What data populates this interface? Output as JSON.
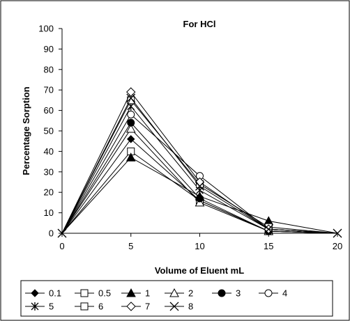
{
  "chart_data": {
    "type": "line",
    "title": "For HCl",
    "xlabel": "Volume of Eluent mL",
    "ylabel": "Percentage Sorption",
    "x": [
      0,
      5,
      10,
      15,
      20
    ],
    "xlim": [
      0,
      20
    ],
    "ylim": [
      0,
      100
    ],
    "xticks": [
      "0",
      "5",
      "10",
      "15",
      "20"
    ],
    "yticks": [
      "0",
      "10",
      "20",
      "30",
      "40",
      "50",
      "60",
      "70",
      "80",
      "90",
      "100"
    ],
    "grid": false,
    "legend_position": "bottom",
    "series": [
      {
        "name": "0.1",
        "marker": "filled-diamond",
        "values": [
          0,
          46,
          16,
          1,
          0
        ]
      },
      {
        "name": "0.5",
        "marker": "open-square",
        "values": [
          0,
          40,
          16,
          1,
          0
        ]
      },
      {
        "name": "1",
        "marker": "filled-triangle",
        "values": [
          0,
          37,
          18,
          6,
          0
        ]
      },
      {
        "name": "2",
        "marker": "open-triangle",
        "values": [
          0,
          51,
          15,
          1,
          0
        ]
      },
      {
        "name": "3",
        "marker": "filled-circle",
        "values": [
          0,
          54,
          17,
          1,
          0
        ]
      },
      {
        "name": "4",
        "marker": "open-circle",
        "values": [
          0,
          58,
          28,
          2,
          0
        ]
      },
      {
        "name": "5",
        "marker": "star",
        "values": [
          0,
          62,
          21,
          2,
          0
        ]
      },
      {
        "name": "6",
        "marker": "open-square",
        "values": [
          0,
          65,
          24,
          3,
          0
        ]
      },
      {
        "name": "7",
        "marker": "open-diamond",
        "values": [
          0,
          69,
          25,
          2,
          0
        ]
      },
      {
        "name": "8",
        "marker": "x",
        "values": [
          0,
          66,
          23,
          2,
          0
        ]
      }
    ]
  }
}
